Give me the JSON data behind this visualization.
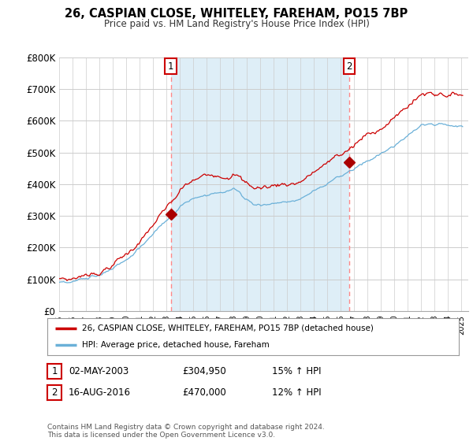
{
  "title": "26, CASPIAN CLOSE, WHITELEY, FAREHAM, PO15 7BP",
  "subtitle": "Price paid vs. HM Land Registry's House Price Index (HPI)",
  "ylim": [
    0,
    800000
  ],
  "yticks": [
    0,
    100000,
    200000,
    300000,
    400000,
    500000,
    600000,
    700000,
    800000
  ],
  "ytick_labels": [
    "£0",
    "£100K",
    "£200K",
    "£300K",
    "£400K",
    "£500K",
    "£600K",
    "£700K",
    "£800K"
  ],
  "sale1_date": 2003.33,
  "sale1_price": 304950,
  "sale1_label": "1",
  "sale2_date": 2016.62,
  "sale2_price": 470000,
  "sale2_label": "2",
  "hpi_line_color": "#6ab0d8",
  "price_line_color": "#CC0000",
  "sale_marker_color": "#AA0000",
  "dashed_line_color": "#FF8888",
  "shade_color": "#d0e8f5",
  "legend_label1": "26, CASPIAN CLOSE, WHITELEY, FAREHAM, PO15 7BP (detached house)",
  "legend_label2": "HPI: Average price, detached house, Fareham",
  "table_row1": [
    "1",
    "02-MAY-2003",
    "£304,950",
    "15% ↑ HPI"
  ],
  "table_row2": [
    "2",
    "16-AUG-2016",
    "£470,000",
    "12% ↑ HPI"
  ],
  "footer": "Contains HM Land Registry data © Crown copyright and database right 2024.\nThis data is licensed under the Open Government Licence v3.0.",
  "background_color": "#ffffff",
  "plot_bg_color": "#ffffff",
  "grid_color": "#cccccc"
}
